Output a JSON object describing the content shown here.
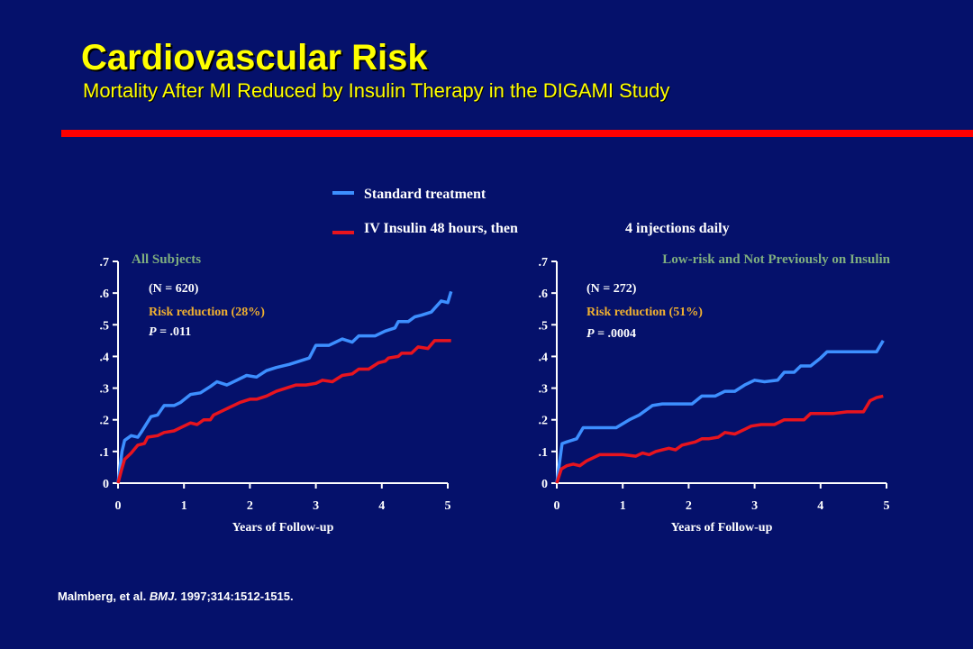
{
  "header": {
    "title": "Cardiovascular Risk",
    "subtitle": "Mortality After MI Reduced by Insulin Therapy in the DIGAMI Study"
  },
  "legend": {
    "standard": "Standard treatment",
    "insulin_a": "IV Insulin 48 hours, then",
    "insulin_b": "4 injections daily"
  },
  "colors": {
    "background": "#05116b",
    "title": "#ffff00",
    "rule": "#ff0000",
    "standard": "#3d8fff",
    "insulin": "#e8141e",
    "panel_title": "#7fae7f",
    "risk_text": "#f0b030"
  },
  "citation": {
    "authors": "Malmberg,  et al. ",
    "journal": "BMJ.",
    "rest": " 1997;314:1512-1515."
  },
  "chart_data": [
    {
      "type": "line",
      "title": "All Subjects",
      "n_label": "(N = 620)",
      "risk_label": "Risk reduction (28%)",
      "p_prefix": "P",
      "p_value": " = .011",
      "xlabel": "Years of Follow-up",
      "xlim": [
        0,
        5
      ],
      "ylim": [
        0,
        0.7
      ],
      "xticks": [
        "0",
        "1",
        "2",
        "3",
        "4",
        "5"
      ],
      "yticks": [
        "0",
        ".1",
        ".2",
        ".3",
        ".4",
        ".5",
        ".6",
        ".7"
      ],
      "series": [
        {
          "name": "Standard treatment",
          "points": [
            [
              0,
              0
            ],
            [
              0.06,
              0.1
            ],
            [
              0.1,
              0.135
            ],
            [
              0.2,
              0.15
            ],
            [
              0.3,
              0.145
            ],
            [
              0.35,
              0.16
            ],
            [
              0.5,
              0.21
            ],
            [
              0.6,
              0.215
            ],
            [
              0.7,
              0.245
            ],
            [
              0.85,
              0.245
            ],
            [
              0.95,
              0.255
            ],
            [
              1.1,
              0.28
            ],
            [
              1.25,
              0.285
            ],
            [
              1.4,
              0.305
            ],
            [
              1.5,
              0.32
            ],
            [
              1.65,
              0.31
            ],
            [
              1.8,
              0.325
            ],
            [
              1.95,
              0.34
            ],
            [
              2.1,
              0.335
            ],
            [
              2.25,
              0.355
            ],
            [
              2.4,
              0.365
            ],
            [
              2.6,
              0.375
            ],
            [
              2.75,
              0.385
            ],
            [
              2.9,
              0.395
            ],
            [
              3.0,
              0.435
            ],
            [
              3.2,
              0.435
            ],
            [
              3.4,
              0.455
            ],
            [
              3.55,
              0.445
            ],
            [
              3.65,
              0.465
            ],
            [
              3.9,
              0.465
            ],
            [
              4.05,
              0.48
            ],
            [
              4.2,
              0.49
            ],
            [
              4.25,
              0.51
            ],
            [
              4.4,
              0.51
            ],
            [
              4.5,
              0.525
            ],
            [
              4.6,
              0.53
            ],
            [
              4.75,
              0.54
            ],
            [
              4.9,
              0.575
            ],
            [
              5.0,
              0.57
            ],
            [
              5.05,
              0.605
            ]
          ]
        },
        {
          "name": "IV Insulin 48 hours, then 4 injections daily",
          "points": [
            [
              0,
              0
            ],
            [
              0.05,
              0.04
            ],
            [
              0.1,
              0.075
            ],
            [
              0.2,
              0.095
            ],
            [
              0.3,
              0.12
            ],
            [
              0.4,
              0.125
            ],
            [
              0.45,
              0.145
            ],
            [
              0.6,
              0.15
            ],
            [
              0.7,
              0.16
            ],
            [
              0.85,
              0.165
            ],
            [
              1.0,
              0.18
            ],
            [
              1.1,
              0.19
            ],
            [
              1.2,
              0.185
            ],
            [
              1.3,
              0.2
            ],
            [
              1.4,
              0.2
            ],
            [
              1.45,
              0.215
            ],
            [
              1.6,
              0.23
            ],
            [
              1.75,
              0.245
            ],
            [
              1.85,
              0.255
            ],
            [
              2.0,
              0.265
            ],
            [
              2.1,
              0.265
            ],
            [
              2.25,
              0.275
            ],
            [
              2.4,
              0.29
            ],
            [
              2.55,
              0.3
            ],
            [
              2.7,
              0.31
            ],
            [
              2.85,
              0.31
            ],
            [
              3.0,
              0.315
            ],
            [
              3.1,
              0.325
            ],
            [
              3.25,
              0.32
            ],
            [
              3.4,
              0.34
            ],
            [
              3.55,
              0.345
            ],
            [
              3.65,
              0.36
            ],
            [
              3.8,
              0.36
            ],
            [
              3.95,
              0.38
            ],
            [
              4.05,
              0.385
            ],
            [
              4.1,
              0.395
            ],
            [
              4.25,
              0.4
            ],
            [
              4.3,
              0.41
            ],
            [
              4.45,
              0.41
            ],
            [
              4.55,
              0.43
            ],
            [
              4.7,
              0.425
            ],
            [
              4.8,
              0.45
            ],
            [
              5.0,
              0.45
            ],
            [
              5.05,
              0.45
            ]
          ]
        }
      ]
    },
    {
      "type": "line",
      "title": "Low-risk and Not Previously on Insulin",
      "n_label": "(N = 272)",
      "risk_label": "Risk reduction (51%)",
      "p_prefix": "P",
      "p_value": " = .0004",
      "xlabel": "Years of Follow-up",
      "xlim": [
        0,
        5
      ],
      "ylim": [
        0,
        0.7
      ],
      "xticks": [
        "0",
        "1",
        "2",
        "3",
        "4",
        "5"
      ],
      "yticks": [
        "0",
        ".1",
        ".2",
        ".3",
        ".4",
        ".5",
        ".6",
        ".7"
      ],
      "series": [
        {
          "name": "Standard treatment",
          "points": [
            [
              0,
              0
            ],
            [
              0.08,
              0.125
            ],
            [
              0.15,
              0.13
            ],
            [
              0.3,
              0.14
            ],
            [
              0.4,
              0.175
            ],
            [
              0.6,
              0.175
            ],
            [
              0.9,
              0.175
            ],
            [
              1.1,
              0.2
            ],
            [
              1.25,
              0.215
            ],
            [
              1.45,
              0.245
            ],
            [
              1.6,
              0.25
            ],
            [
              1.9,
              0.25
            ],
            [
              2.05,
              0.25
            ],
            [
              2.2,
              0.275
            ],
            [
              2.4,
              0.275
            ],
            [
              2.55,
              0.29
            ],
            [
              2.7,
              0.29
            ],
            [
              2.85,
              0.31
            ],
            [
              3.0,
              0.325
            ],
            [
              3.15,
              0.32
            ],
            [
              3.35,
              0.325
            ],
            [
              3.45,
              0.35
            ],
            [
              3.6,
              0.35
            ],
            [
              3.7,
              0.37
            ],
            [
              3.85,
              0.37
            ],
            [
              4.0,
              0.395
            ],
            [
              4.1,
              0.415
            ],
            [
              4.7,
              0.415
            ],
            [
              4.85,
              0.415
            ],
            [
              4.95,
              0.45
            ]
          ]
        },
        {
          "name": "IV Insulin 48 hours, then 4 injections daily",
          "points": [
            [
              0,
              0
            ],
            [
              0.07,
              0.045
            ],
            [
              0.15,
              0.055
            ],
            [
              0.25,
              0.06
            ],
            [
              0.35,
              0.055
            ],
            [
              0.45,
              0.07
            ],
            [
              0.55,
              0.08
            ],
            [
              0.65,
              0.09
            ],
            [
              0.8,
              0.09
            ],
            [
              1.0,
              0.09
            ],
            [
              1.2,
              0.085
            ],
            [
              1.3,
              0.095
            ],
            [
              1.4,
              0.09
            ],
            [
              1.5,
              0.1
            ],
            [
              1.6,
              0.105
            ],
            [
              1.7,
              0.11
            ],
            [
              1.8,
              0.105
            ],
            [
              1.9,
              0.12
            ],
            [
              2.0,
              0.125
            ],
            [
              2.1,
              0.13
            ],
            [
              2.2,
              0.14
            ],
            [
              2.3,
              0.14
            ],
            [
              2.45,
              0.145
            ],
            [
              2.55,
              0.16
            ],
            [
              2.7,
              0.155
            ],
            [
              2.85,
              0.17
            ],
            [
              2.95,
              0.18
            ],
            [
              3.1,
              0.185
            ],
            [
              3.3,
              0.185
            ],
            [
              3.45,
              0.2
            ],
            [
              3.6,
              0.2
            ],
            [
              3.75,
              0.2
            ],
            [
              3.85,
              0.22
            ],
            [
              4.0,
              0.22
            ],
            [
              4.2,
              0.22
            ],
            [
              4.4,
              0.225
            ],
            [
              4.65,
              0.225
            ],
            [
              4.75,
              0.26
            ],
            [
              4.85,
              0.27
            ],
            [
              4.95,
              0.275
            ]
          ]
        }
      ]
    }
  ]
}
